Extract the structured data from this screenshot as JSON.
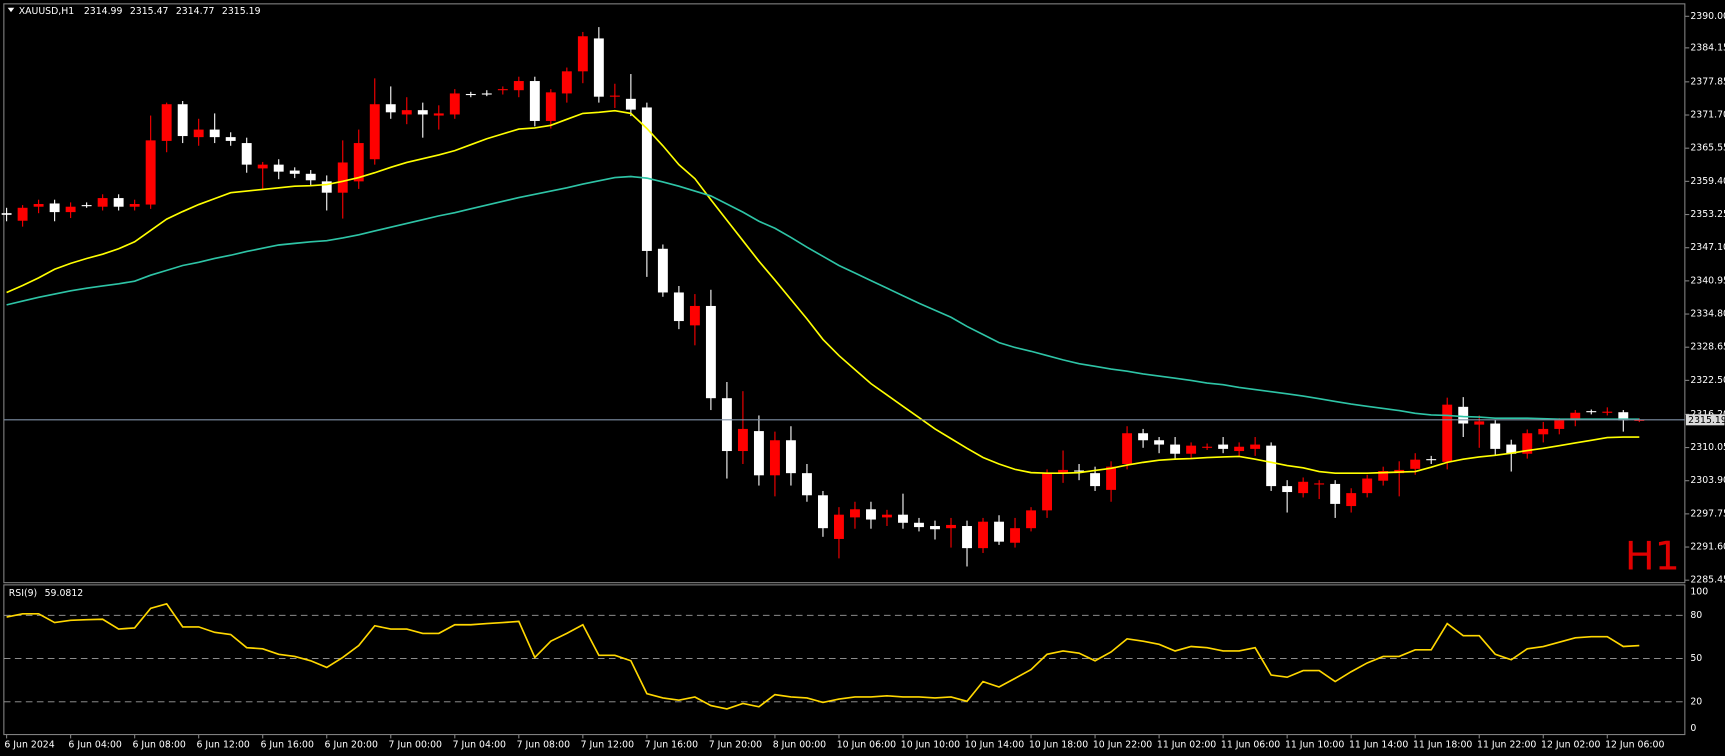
{
  "chart_data": [
    {
      "type": "candlestick",
      "title": "XAUUSD,H1",
      "annotation": "H1",
      "up_color": "#ff0000",
      "down_color": "#ffffff",
      "price_line_color": "#7f8fa6",
      "categories": [
        "6 Jun 2024",
        null,
        null,
        null,
        "6 Jun 04:00",
        null,
        null,
        null,
        "6 Jun 08:00",
        null,
        null,
        null,
        "6 Jun 12:00",
        null,
        null,
        null,
        "6 Jun 16:00",
        null,
        null,
        null,
        "6 Jun 20:00",
        null,
        null,
        null,
        "7 Jun 00:00",
        null,
        null,
        null,
        "7 Jun 04:00",
        null,
        null,
        null,
        "7 Jun 08:00",
        null,
        null,
        null,
        "7 Jun 12:00",
        null,
        null,
        null,
        "7 Jun 16:00",
        null,
        null,
        null,
        "7 Jun 20:00",
        null,
        null,
        null,
        "8 Jun 00:00",
        null,
        null,
        null,
        "10 Jun 06:00",
        null,
        null,
        null,
        "10 Jun 10:00",
        null,
        null,
        null,
        "10 Jun 14:00",
        null,
        null,
        null,
        "10 Jun 18:00",
        null,
        null,
        null,
        "10 Jun 22:00",
        null,
        null,
        null,
        "11 Jun 02:00",
        null,
        null,
        null,
        "11 Jun 06:00",
        null,
        null,
        null,
        "11 Jun 10:00",
        null,
        null,
        null,
        "11 Jun 14:00",
        null,
        null,
        null,
        "11 Jun 18:00",
        null,
        null,
        null,
        "11 Jun 22:00",
        null,
        null,
        null,
        "12 Jun 02:00",
        null,
        null,
        null,
        "12 Jun 06:00",
        null,
        null
      ],
      "open": [
        2353.5,
        2352.1,
        2354.7,
        2355.3,
        2353.7,
        2355.0,
        2354.7,
        2356.3,
        2354.7,
        2355.1,
        2366.9,
        2373.7,
        2367.6,
        2369.0,
        2367.6,
        2366.5,
        2361.8,
        2362.5,
        2361.4,
        2360.8,
        2359.4,
        2357.3,
        2359.4,
        2363.5,
        2373.7,
        2371.8,
        2372.6,
        2371.6,
        2371.8,
        2375.6,
        2375.7,
        2376.4,
        2376.3,
        2378.0,
        2370.6,
        2375.7,
        2379.8,
        2385.9,
        2375.1,
        2374.7,
        2373.1,
        2346.9,
        2338.8,
        2332.7,
        2336.3,
        2319.2,
        2309.4,
        2313.1,
        2304.9,
        2311.4,
        2305.3,
        2301.2,
        2293.1,
        2297.1,
        2298.6,
        2297.1,
        2297.6,
        2296.1,
        2295.5,
        2295.1,
        2295.5,
        2291.4,
        2296.3,
        2292.4,
        2295.1,
        2298.4,
        2305.3,
        2305.8,
        2305.3,
        2302.2,
        2307.0,
        2312.7,
        2311.4,
        2310.6,
        2308.9,
        2310.1,
        2310.6,
        2309.4,
        2309.8,
        2310.4,
        2302.9,
        2301.6,
        2303.2,
        2303.3,
        2299.2,
        2301.6,
        2303.9,
        2305.3,
        2306.1,
        2307.9,
        2307.4,
        2317.6,
        2314.3,
        2314.5,
        2310.6,
        2308.9,
        2312.5,
        2313.5,
        2315.1,
        2316.8,
        2316.6,
        2316.6,
        2314.99
      ],
      "high": [
        2354.5,
        2355,
        2356,
        2356,
        2355.5,
        2355.5,
        2357,
        2357,
        2356,
        2371.6,
        2374,
        2374.3,
        2371,
        2372,
        2368.5,
        2367.5,
        2363,
        2363.5,
        2362,
        2361.5,
        2360.5,
        2367,
        2369,
        2378.5,
        2377,
        2375,
        2374,
        2373.5,
        2376.5,
        2376,
        2376.3,
        2377,
        2378.8,
        2378.8,
        2376.5,
        2380.5,
        2387.1,
        2388,
        2377.5,
        2379.3,
        2374,
        2347.7,
        2340,
        2338.5,
        2339.3,
        2322.2,
        2320.5,
        2316,
        2313,
        2314,
        2307,
        2302,
        2299,
        2300,
        2300,
        2298.5,
        2301.5,
        2297,
        2296.5,
        2297,
        2296.5,
        2297,
        2297.5,
        2297,
        2299,
        2306,
        2309.5,
        2307,
        2306.5,
        2307.5,
        2314,
        2313.5,
        2312,
        2312,
        2311,
        2310.8,
        2312,
        2311,
        2312,
        2311,
        2304,
        2304.5,
        2304,
        2304,
        2302.5,
        2305,
        2306.5,
        2307.5,
        2309,
        2308.5,
        2319.3,
        2319.4,
        2316,
        2315.2,
        2311.5,
        2313.4,
        2314.8,
        2315.5,
        2317,
        2317.1,
        2317.5,
        2317,
        2315.47
      ],
      "low": [
        2352,
        2351,
        2353.5,
        2352,
        2352.6,
        2354.5,
        2354,
        2354,
        2354,
        2354.3,
        2364.8,
        2366.5,
        2366,
        2366.5,
        2366,
        2361,
        2358,
        2359.8,
        2360,
        2358.5,
        2354,
        2352.5,
        2358,
        2362.5,
        2371,
        2370,
        2367.5,
        2369,
        2371,
        2375,
        2375.2,
        2375.5,
        2375,
        2369.6,
        2369.2,
        2374,
        2377.6,
        2374,
        2373,
        2371.5,
        2341.7,
        2338,
        2332,
        2329,
        2317,
        2304.3,
        2307,
        2303,
        2301,
        2303,
        2300,
        2293.5,
        2289.5,
        2295,
        2295,
        2295.5,
        2295,
        2294.5,
        2293,
        2291.5,
        2288,
        2290.5,
        2292,
        2291.5,
        2294.5,
        2297,
        2303.5,
        2304,
        2302,
        2300,
        2306,
        2310,
        2309,
        2308,
        2308,
        2309.6,
        2309,
        2308.5,
        2308.5,
        2302,
        2298,
        2300.8,
        2300.5,
        2297,
        2298,
        2300.8,
        2303,
        2301,
        2305,
        2307,
        2306,
        2312,
        2310,
        2308.5,
        2305.6,
        2308,
        2311,
        2312.5,
        2314,
        2316.2,
        2316,
        2313,
        2314.77
      ],
      "close": [
        2353.2,
        2354.5,
        2355.2,
        2353.7,
        2354.7,
        2354.9,
        2356.3,
        2354.7,
        2355.2,
        2367.0,
        2373.7,
        2367.8,
        2369.0,
        2367.6,
        2366.9,
        2362.5,
        2362.5,
        2361.2,
        2360.8,
        2359.6,
        2357.3,
        2362.9,
        2366.5,
        2373.7,
        2372.2,
        2372.6,
        2371.8,
        2372.0,
        2375.7,
        2375.5,
        2375.6,
        2376.5,
        2378.0,
        2370.6,
        2375.9,
        2379.8,
        2386.3,
        2375.1,
        2375.3,
        2372.7,
        2346.5,
        2338.8,
        2333.5,
        2336.3,
        2319.2,
        2309.4,
        2313.5,
        2304.9,
        2311.4,
        2305.3,
        2301.2,
        2295.1,
        2297.6,
        2298.6,
        2296.7,
        2297.6,
        2296.1,
        2295.3,
        2294.9,
        2295.7,
        2291.4,
        2296.3,
        2292.6,
        2295.1,
        2298.4,
        2305.3,
        2305.9,
        2305.6,
        2302.9,
        2306.5,
        2312.7,
        2311.4,
        2310.6,
        2308.9,
        2310.4,
        2310.2,
        2309.8,
        2310.2,
        2310.6,
        2302.9,
        2301.8,
        2303.7,
        2303.4,
        2299.6,
        2301.6,
        2304.3,
        2305.7,
        2305.9,
        2307.8,
        2307.7,
        2318.0,
        2314.5,
        2314.9,
        2309.8,
        2308.9,
        2312.7,
        2313.5,
        2315.1,
        2316.5,
        2316.6,
        2316.7,
        2315.1,
        2315.19
      ],
      "series": [
        {
          "color": "#ffff00",
          "values": [
            2338.8,
            2340.1,
            2341.5,
            2343.1,
            2344.2,
            2345.1,
            2345.9,
            2346.9,
            2348.2,
            2350.3,
            2352.4,
            2353.8,
            2355.1,
            2356.2,
            2357.3,
            2357.6,
            2357.9,
            2358.2,
            2358.5,
            2358.6,
            2358.8,
            2359.4,
            2360.1,
            2361.0,
            2362.0,
            2362.9,
            2363.6,
            2364.3,
            2365.1,
            2366.2,
            2367.3,
            2368.2,
            2369.1,
            2369.3,
            2369.8,
            2370.9,
            2372.0,
            2372.2,
            2372.5,
            2372.0,
            2369.2,
            2366.0,
            2362.5,
            2359.9,
            2356.0,
            2352.2,
            2348.4,
            2344.6,
            2341.1,
            2337.5,
            2333.9,
            2330.1,
            2327.1,
            2324.5,
            2321.9,
            2319.8,
            2317.7,
            2315.6,
            2313.5,
            2311.7,
            2309.9,
            2308.2,
            2307.0,
            2306.0,
            2305.4,
            2305.3,
            2305.3,
            2305.4,
            2305.8,
            2306.2,
            2306.8,
            2307.3,
            2307.7,
            2307.9,
            2308.0,
            2308.2,
            2308.3,
            2308.4,
            2307.9,
            2307.3,
            2306.7,
            2306.3,
            2305.6,
            2305.3,
            2305.3,
            2305.3,
            2305.4,
            2305.5,
            2305.6,
            2306.4,
            2307.3,
            2307.9,
            2308.3,
            2308.6,
            2309.0,
            2309.5,
            2309.9,
            2310.4,
            2310.9,
            2311.4,
            2311.9,
            2312.0,
            2312.0
          ]
        },
        {
          "color": "#2ec4a6",
          "values": [
            2336.5,
            2337.2,
            2337.9,
            2338.5,
            2339.1,
            2339.6,
            2340.0,
            2340.4,
            2340.9,
            2342.0,
            2342.9,
            2343.8,
            2344.4,
            2345.1,
            2345.7,
            2346.4,
            2347.0,
            2347.6,
            2347.9,
            2348.2,
            2348.4,
            2348.9,
            2349.5,
            2350.2,
            2350.9,
            2351.6,
            2352.3,
            2353.0,
            2353.6,
            2354.3,
            2355.0,
            2355.7,
            2356.4,
            2357.0,
            2357.6,
            2358.2,
            2358.9,
            2359.5,
            2360.1,
            2360.3,
            2360.0,
            2359.3,
            2358.5,
            2357.6,
            2356.7,
            2355.2,
            2353.7,
            2352.0,
            2350.7,
            2349.0,
            2347.2,
            2345.5,
            2343.8,
            2342.4,
            2341.0,
            2339.6,
            2338.2,
            2336.8,
            2335.5,
            2334.2,
            2332.5,
            2331.0,
            2329.5,
            2328.6,
            2327.9,
            2327.1,
            2326.3,
            2325.6,
            2325.1,
            2324.6,
            2324.2,
            2323.7,
            2323.3,
            2322.9,
            2322.5,
            2322.0,
            2321.7,
            2321.2,
            2320.8,
            2320.4,
            2320.0,
            2319.6,
            2319.1,
            2318.6,
            2318.1,
            2317.7,
            2317.3,
            2316.9,
            2316.4,
            2316.1,
            2316.0,
            2315.8,
            2315.7,
            2315.5,
            2315.5,
            2315.5,
            2315.4,
            2315.3,
            2315.3,
            2315.3,
            2315.3,
            2315.3,
            2315.3
          ]
        }
      ],
      "ylim": [
        2285.3,
        2391.8
      ],
      "yticks": [
        {
          "value": 2390.0,
          "label": "2390.00"
        },
        2384.15,
        2377.85,
        {
          "value": 2371.7,
          "label": "2371.70"
        },
        2365.55,
        {
          "value": 2359.4,
          "label": "2359.40"
        },
        2353.25,
        {
          "value": 2347.1,
          "label": "2347.10"
        },
        2340.95,
        {
          "value": 2334.8,
          "label": "2334.80"
        },
        2328.65,
        {
          "value": 2322.5,
          "label": "2322.50"
        },
        {
          "value": 2316.2,
          "label": "2316.20"
        },
        2310.05,
        {
          "value": 2303.9,
          "label": "2303.90"
        },
        2297.75,
        {
          "value": 2291.6,
          "label": "2291.60"
        },
        2285.45
      ]
    },
    {
      "type": "line",
      "title": "RSI(9)",
      "series": [
        {
          "color": "#ffd700",
          "values": [
            78.8,
            81.1,
            81.1,
            75.0,
            76.6,
            77.0,
            77.3,
            70.5,
            71.3,
            84.9,
            88.0,
            72.0,
            72.0,
            68.2,
            66.7,
            57.6,
            56.8,
            53.0,
            51.5,
            48.5,
            43.9,
            50.8,
            59.1,
            72.8,
            70.5,
            70.5,
            67.5,
            67.5,
            73.5,
            73.5,
            74.3,
            75.0,
            75.8,
            50.8,
            62.1,
            67.5,
            73.5,
            52.3,
            52.3,
            48.5,
            25.7,
            22.7,
            21.2,
            23.4,
            17.4,
            15.1,
            18.9,
            16.6,
            25.0,
            23.4,
            22.7,
            19.6,
            21.9,
            23.4,
            23.4,
            24.2,
            23.4,
            23.4,
            22.7,
            23.4,
            20.4,
            34.1,
            30.3,
            36.3,
            42.4,
            53.0,
            55.3,
            53.8,
            48.5,
            54.6,
            63.7,
            62.1,
            59.9,
            55.3,
            58.4,
            57.6,
            55.3,
            55.3,
            57.6,
            38.6,
            37.1,
            41.7,
            41.7,
            34.1,
            40.9,
            47.0,
            51.5,
            51.5,
            56.1,
            56.1,
            74.3,
            65.9,
            65.9,
            53.0,
            49.2,
            56.8,
            58.4,
            61.4,
            64.4,
            65.2,
            65.2,
            58.4,
            59.0812
          ]
        }
      ],
      "ylim": [
        0,
        100
      ],
      "yticks": [
        0,
        20,
        50,
        80,
        100
      ]
    }
  ]
}
